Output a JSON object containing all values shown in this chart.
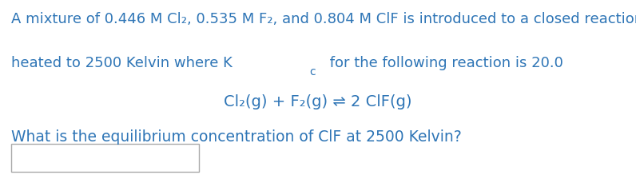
{
  "bg_color": "#ffffff",
  "text_color": "#2E75B6",
  "line1": "A mixture of 0.446 M Cl₂, 0.535 M F₂, and 0.804 M ClF is introduced to a closed reaction vessel at",
  "kc_text_before": "heated to 2500 Kelvin where K",
  "kc_subscript": "c",
  "kc_text_after": " for the following reaction is 20.0",
  "equation": "Cl₂(g) + F₂(g) ⇌ 2 ClF(g)",
  "question": "What is the equilibrium concentration of ClF at 2500 Kelvin?",
  "font_size_main": 13.0,
  "font_size_eq": 14.0,
  "font_size_question": 13.5,
  "font_size_sub": 10.0
}
